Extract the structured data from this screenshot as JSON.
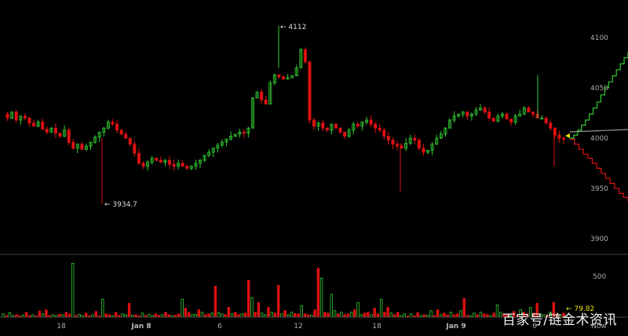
{
  "chart_data": {
    "type": "candlestick",
    "price_axis": {
      "ticks": [
        4100,
        4050,
        4000,
        3950,
        3900
      ],
      "ylim": [
        3880,
        4130
      ]
    },
    "volume_axis": {
      "ticks": [
        500
      ],
      "ylim": [
        0,
        750
      ]
    },
    "x_tick_labels": [
      {
        "label": "18",
        "bold": false
      },
      {
        "label": "Jan 8",
        "bold": true
      },
      {
        "label": "6",
        "bold": false
      },
      {
        "label": "12",
        "bold": false
      },
      {
        "label": "18",
        "bold": false
      },
      {
        "label": "Jan 9",
        "bold": true
      },
      {
        "label": "6",
        "bold": false
      },
      {
        "label": "Now",
        "bold": false
      }
    ],
    "annotations": {
      "high": "← 4112",
      "low": "← 3934.7",
      "volume": "← 79.82"
    },
    "high_value": 4112,
    "low_value": 3934.7,
    "last_volume": 79.82,
    "price_series": [
      4024,
      4020,
      4026,
      4018,
      4022,
      4020,
      4015,
      4012,
      4016,
      4009,
      4006,
      4010,
      4005,
      4002,
      4008,
      3996,
      3990,
      3994,
      3989,
      3992,
      3996,
      4001,
      4006,
      4010,
      4016,
      4014,
      4008,
      4004,
      4000,
      3994,
      3985,
      3975,
      3972,
      3976,
      3980,
      3978,
      3976,
      3978,
      3974,
      3972,
      3975,
      3972,
      3970,
      3972,
      3975,
      3978,
      3983,
      3986,
      3990,
      3993,
      3996,
      3999,
      4002,
      4004,
      4006,
      4005,
      4010,
      4040,
      4046,
      4038,
      4034,
      4055,
      4063,
      4061,
      4059,
      4060,
      4062,
      4070,
      4088,
      4076,
      4018,
      4012,
      4015,
      4010,
      4008,
      4014,
      4010,
      4006,
      4002,
      4008,
      4014,
      4012,
      4016,
      4018,
      4014,
      4010,
      4008,
      4002,
      3998,
      3994,
      3992,
      3990,
      3995,
      4000,
      3998,
      3990,
      3986,
      3988,
      3994,
      4000,
      4004,
      4010,
      4018,
      4022,
      4024,
      4026,
      4022,
      4024,
      4028,
      4030,
      4026,
      4020,
      4017,
      4022,
      4024,
      4019,
      4016,
      4022,
      4024,
      4030,
      4026,
      4024,
      4020,
      4020,
      4015,
      4010,
      4003,
      4000,
      3999
    ],
    "volume_series": [
      40,
      20,
      55,
      20,
      30,
      18,
      25,
      60,
      20,
      30,
      15,
      75,
      40,
      90,
      22,
      30,
      18,
      35,
      28,
      60,
      40,
      660,
      22,
      35,
      18,
      50,
      18,
      30,
      70,
      18,
      220,
      40,
      30,
      18,
      60,
      22,
      40,
      30,
      170,
      25,
      30,
      18,
      50,
      22,
      35,
      18,
      40,
      24,
      30,
      60,
      30,
      18,
      25,
      40,
      220,
      110,
      60,
      30,
      35,
      90,
      60,
      30,
      40,
      50,
      380,
      55,
      40,
      30,
      120,
      40,
      60,
      30,
      40,
      50,
      450,
      240,
      60,
      180,
      50,
      30,
      120,
      60,
      50,
      390,
      40,
      80,
      30,
      60,
      45,
      40,
      140,
      40,
      30,
      24,
      90,
      600,
      480,
      60,
      50,
      280,
      80,
      40,
      60,
      30,
      40,
      60,
      90,
      180,
      30,
      50,
      60,
      30,
      110,
      40,
      220,
      60,
      120,
      50,
      30,
      60,
      20,
      40,
      15,
      40,
      18,
      55,
      18,
      30,
      22,
      80,
      20,
      90,
      30,
      50,
      25,
      60,
      30,
      40,
      80,
      230,
      22,
      18,
      50,
      30,
      60,
      40,
      30,
      18,
      50,
      150,
      60,
      40,
      30,
      20,
      70,
      20,
      90,
      60,
      40,
      120,
      50,
      170,
      40,
      30,
      20,
      60,
      180,
      40,
      30,
      50
    ],
    "depth": {
      "bids_green": [
        4000,
        4003,
        4008,
        4013,
        4018,
        4024,
        4030,
        4036,
        4043,
        4050,
        4056,
        4062,
        4068,
        4074,
        4080,
        4086
      ],
      "asks_red": [
        3999,
        3994,
        3989,
        3984,
        3980,
        3975,
        3970,
        3965,
        3960,
        3955,
        3950,
        3945,
        3941,
        3937
      ]
    },
    "colors": {
      "up": "#33cc33",
      "down": "#dd1111",
      "text": "#aaaaaa",
      "line": "#888888",
      "last": "#e6e600"
    }
  },
  "watermark": "百家号/链金术资讯"
}
